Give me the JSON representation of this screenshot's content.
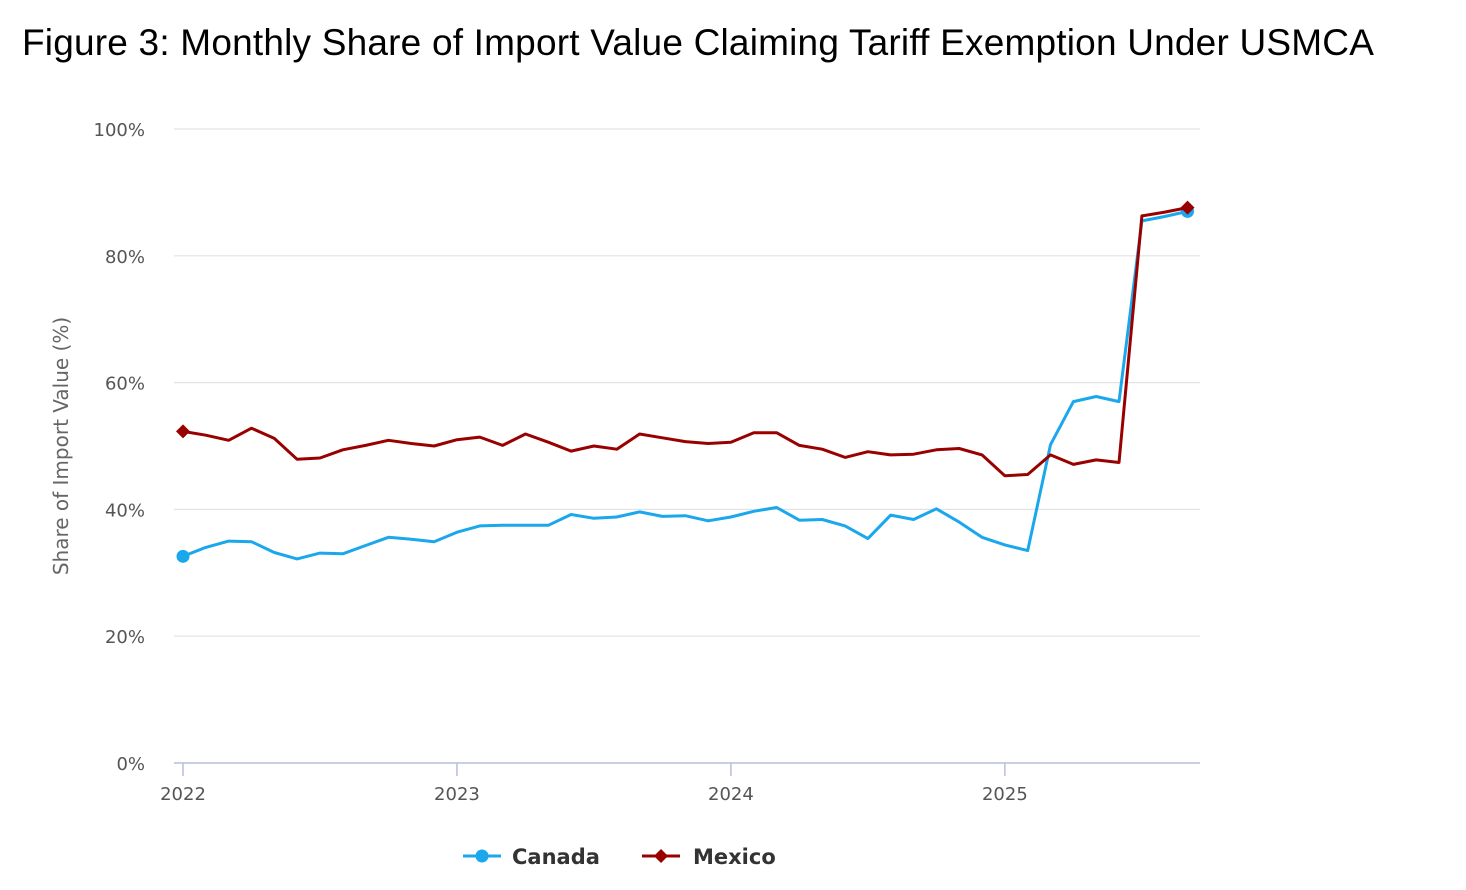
{
  "title": "Figure 3: Monthly Share of Import Value Claiming Tariff Exemption Under USMCA",
  "chart_data": {
    "type": "line",
    "title": "Figure 3: Monthly Share of Import Value Claiming Tariff Exemption Under USMCA",
    "xlabel": "",
    "ylabel": "Share of Import Value (%)",
    "ylim": [
      0,
      100
    ],
    "yticks": [
      0,
      20,
      40,
      60,
      80,
      100
    ],
    "ytick_labels": [
      "0%",
      "20%",
      "40%",
      "60%",
      "80%",
      "100%"
    ],
    "xticks": [
      0,
      12,
      24,
      36
    ],
    "xtick_labels": [
      "2022",
      "2023",
      "2024",
      "2025"
    ],
    "x_unit": "months since Jan 2022",
    "grid": "horizontal",
    "legend_position": "bottom",
    "series": [
      {
        "name": "Canada",
        "color": "#1aa7ec",
        "marker": "circle",
        "values": [
          32.6,
          34.0,
          35.0,
          34.9,
          33.2,
          32.2,
          33.1,
          33.0,
          34.3,
          35.6,
          35.3,
          34.9,
          36.4,
          37.4,
          37.5,
          37.5,
          37.5,
          39.2,
          38.6,
          38.8,
          39.6,
          38.9,
          39.0,
          38.2,
          38.8,
          39.7,
          40.3,
          38.3,
          38.4,
          37.4,
          35.4,
          39.1,
          38.4,
          40.1,
          38.0,
          35.6,
          34.4,
          33.5,
          50.2,
          57.0,
          57.8,
          57.0,
          85.5,
          86.2,
          87.0
        ]
      },
      {
        "name": "Mexico",
        "color": "#990000",
        "marker": "diamond",
        "values": [
          52.3,
          51.7,
          50.9,
          52.8,
          51.2,
          47.9,
          48.1,
          49.4,
          50.1,
          50.9,
          50.4,
          50.0,
          51.0,
          51.4,
          50.1,
          51.9,
          50.6,
          49.2,
          50.0,
          49.5,
          51.9,
          51.3,
          50.7,
          50.4,
          50.6,
          52.1,
          52.1,
          50.1,
          49.5,
          48.2,
          49.1,
          48.6,
          48.7,
          49.4,
          49.6,
          48.6,
          45.3,
          45.5,
          48.6,
          47.1,
          47.8,
          47.4,
          86.3,
          86.9,
          87.6
        ]
      }
    ]
  }
}
